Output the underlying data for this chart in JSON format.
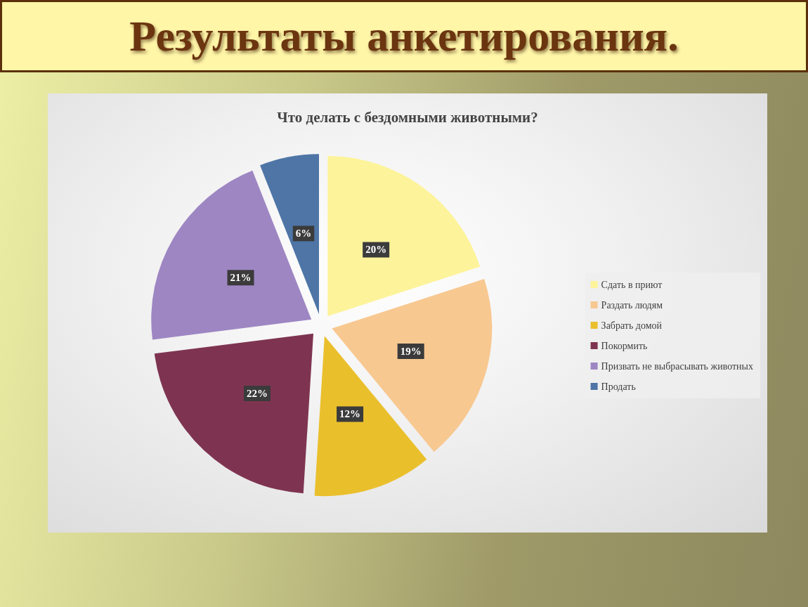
{
  "chart_data": {
    "type": "pie",
    "title": "Результаты анкетирования.",
    "subtitle": "Что делать с бездомными животными?",
    "categories": [
      "Сдать в приют",
      "Раздать людям",
      "Забрать домой",
      "Покормить",
      "Призвать не выбрасывать животных",
      "Продать"
    ],
    "values": [
      20,
      19,
      12,
      22,
      21,
      6
    ],
    "colors": [
      "#fdf39a",
      "#f8c891",
      "#eabf2c",
      "#7e3450",
      "#9e86c3",
      "#4e75a6"
    ],
    "value_labels": [
      "20%",
      "19%",
      "12%",
      "22%",
      "21%",
      "6%"
    ],
    "legend": "right"
  }
}
